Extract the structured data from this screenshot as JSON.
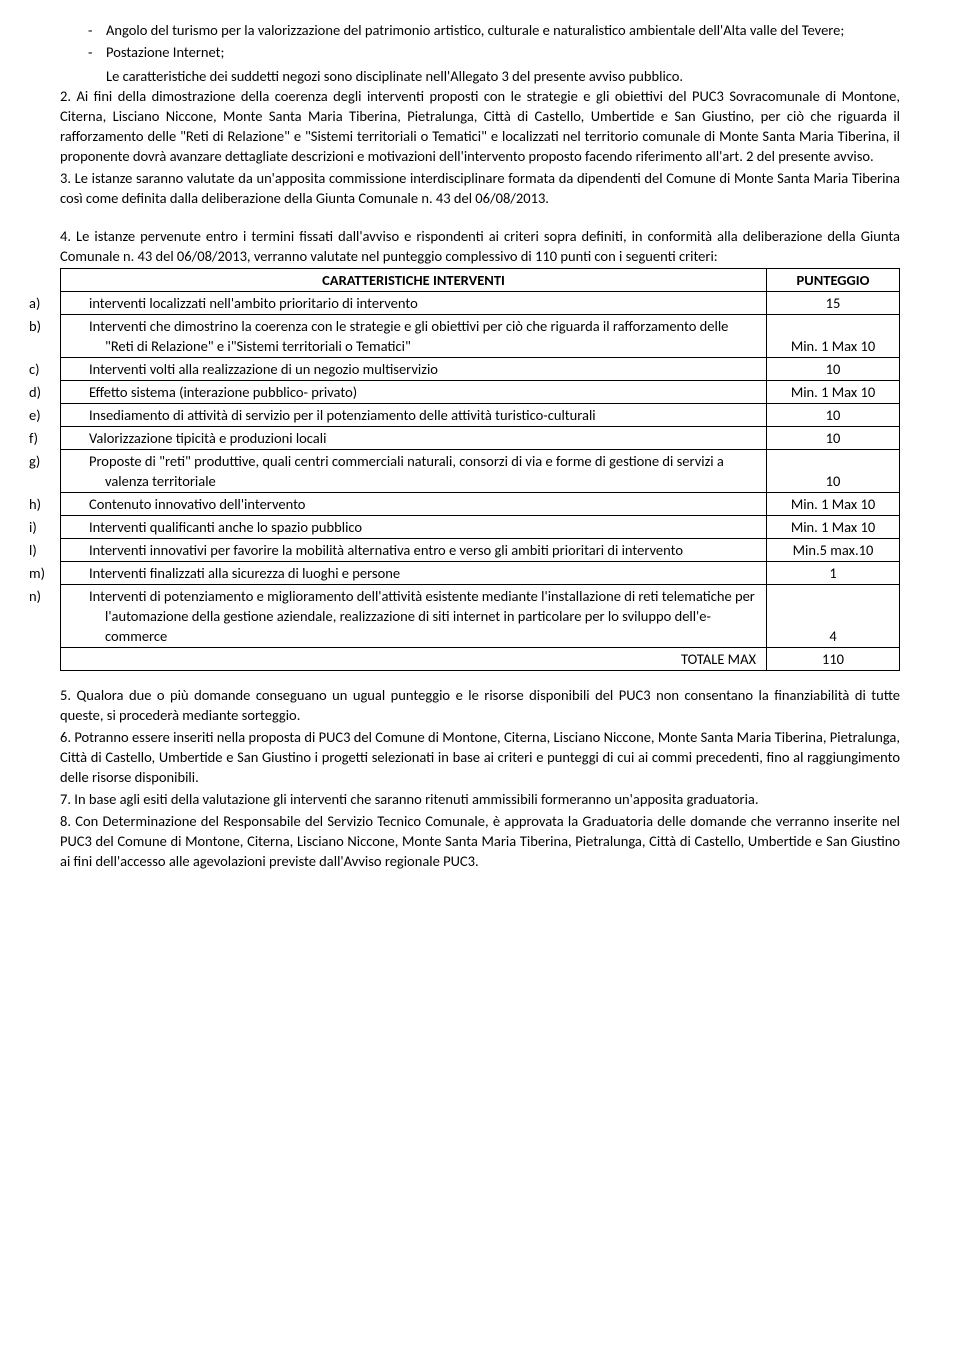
{
  "bullets": [
    "Angolo del turismo per la valorizzazione del patrimonio artistico, culturale e naturalistico ambientale dell'Alta valle del Tevere;",
    "Postazione Internet;"
  ],
  "intro_trailing": "Le caratteristiche dei suddetti negozi sono disciplinate nell'Allegato 3 del presente avviso pubblico.",
  "para2": "2. Ai fini della dimostrazione della coerenza degli interventi proposti con le strategie e gli obiettivi del PUC3 Sovracomunale di Montone, Citerna, Lisciano Niccone, Monte Santa Maria Tiberina, Pietralunga, Città di Castello, Umbertide e San Giustino, per ciò che riguarda il rafforzamento delle \"Reti di Relazione\" e \"Sistemi territoriali o Tematici\" e localizzati nel territorio comunale di Monte Santa Maria Tiberina, il proponente dovrà avanzare dettagliate descrizioni e motivazioni dell'intervento proposto facendo riferimento all'art. 2 del presente avviso.",
  "para3": "3. Le istanze saranno valutate da un'apposita commissione interdisciplinare formata da dipendenti del Comune di Monte Santa Maria Tiberina così come definita dalla deliberazione della Giunta Comunale n. 43 del 06/08/2013.",
  "para4": "4. Le istanze pervenute entro i termini fissati dall'avviso e rispondenti ai criteri sopra definiti, in conformità alla deliberazione della Giunta Comunale n. 43 del 06/08/2013, verranno valutate nel punteggio complessivo di 110 punti con i seguenti criteri:",
  "table": {
    "header_left": "CARATTERISTICHE INTERVENTI",
    "header_right": "PUNTEGGIO",
    "rows": [
      {
        "letter": "a)",
        "text": "interventi localizzati  nell'ambito prioritario di intervento",
        "score": "15"
      },
      {
        "letter": "b)",
        "text": "Interventi che dimostrino la coerenza con le strategie e gli obiettivi per ciò che riguarda il rafforzamento delle \"Reti di Relazione\" e i\"Sistemi territoriali o Tematici\"",
        "score": "Min. 1 Max 10"
      },
      {
        "letter": "c)",
        "text": "Interventi volti alla realizzazione di un negozio multiservizio",
        "score": "10"
      },
      {
        "letter": "d)",
        "text": "Effetto sistema (interazione pubblico- privato)",
        "score": "Min. 1 Max 10"
      },
      {
        "letter": "e)",
        "text": "Insediamento di attività di servizio per il potenziamento delle attività turistico-culturali",
        "score": "10"
      },
      {
        "letter": "f)",
        "text": "Valorizzazione tipicità e produzioni locali",
        "score": "10"
      },
      {
        "letter": "g)",
        "text": "Proposte di \"reti\" produttive, quali centri commerciali naturali, consorzi di via e forme di gestione di servizi a valenza territoriale",
        "score": "10"
      },
      {
        "letter": "h)",
        "text": "Contenuto innovativo dell'intervento",
        "score": "Min. 1 Max 10"
      },
      {
        "letter": "i)",
        "text": "Interventi qualificanti anche lo spazio pubblico",
        "score": "Min. 1 Max 10"
      },
      {
        "letter": "l)",
        "text": "Interventi innovativi per favorire la mobilità alternativa entro e verso gli ambiti prioritari di intervento",
        "score": "Min.5 max.10"
      },
      {
        "letter": "m)",
        "text": "Interventi finalizzati alla sicurezza di luoghi e  persone",
        "score": "1"
      },
      {
        "letter": "n)",
        "text": "Interventi di potenziamento e miglioramento dell'attività esistente mediante l'installazione di reti telematiche per l'automazione della gestione aziendale, realizzazione di siti internet in particolare per lo sviluppo dell'e-commerce",
        "score": "4"
      }
    ],
    "total_label": "TOTALE MAX",
    "total_value": "110"
  },
  "para5": "5. Qualora due o più domande conseguano un ugual punteggio e le risorse disponibili del PUC3 non consentano la finanziabilità di tutte queste, si procederà mediante sorteggio.",
  "para6": "6. Potranno essere inseriti nella proposta di PUC3 del Comune di Montone, Citerna, Lisciano Niccone, Monte Santa Maria Tiberina, Pietralunga, Città di Castello, Umbertide e San Giustino i progetti selezionati in base ai criteri e punteggi di cui ai commi precedenti, fino al raggiungimento delle risorse disponibili.",
  "para7": "7. In base agli esiti della valutazione gli interventi che saranno ritenuti ammissibili formeranno un'apposita graduatoria.",
  "para8": "8. Con Determinazione del Responsabile del Servizio Tecnico Comunale, è approvata la Graduatoria delle domande che verranno inserite nel PUC3 del Comune di Montone, Citerna, Lisciano Niccone, Monte Santa Maria Tiberina, Pietralunga, Città di Castello, Umbertide e San Giustino ai fini dell'accesso alle agevolazioni previste dall'Avviso regionale PUC3."
}
